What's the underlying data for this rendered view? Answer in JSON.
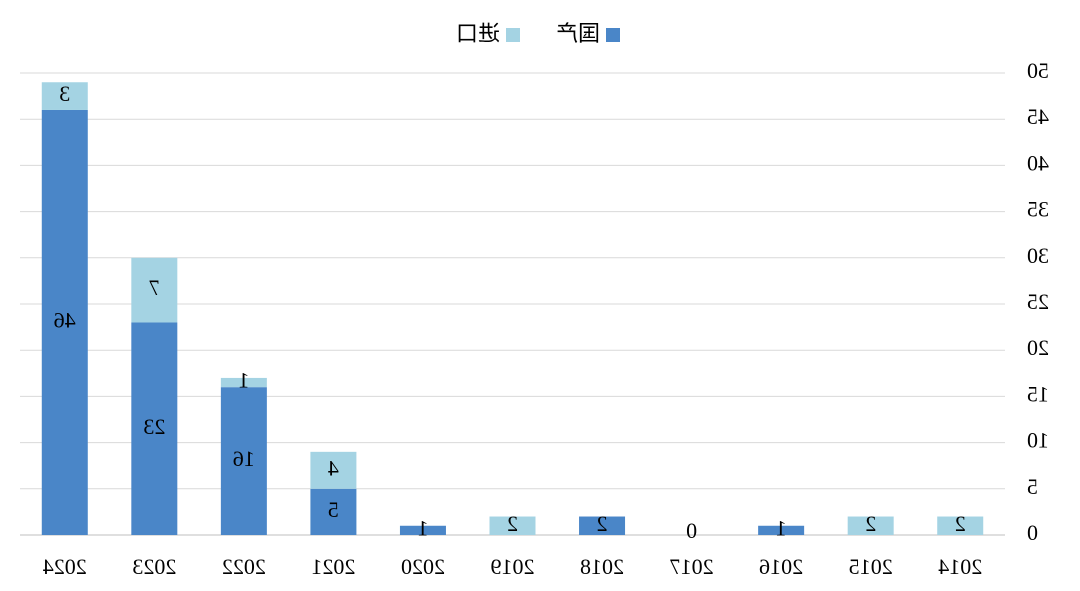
{
  "chart_data": {
    "type": "stacked-bar",
    "categories": [
      "2014",
      "2015",
      "2016",
      "2017",
      "2018",
      "2019",
      "2020",
      "2021",
      "2022",
      "2023",
      "2024"
    ],
    "series": [
      {
        "name": "国产",
        "color": "#4a86c8",
        "values": [
          null,
          null,
          1,
          0,
          2,
          null,
          1,
          5,
          16,
          23,
          46
        ]
      },
      {
        "name": "进口",
        "color": "#a4d3e3",
        "values": [
          2,
          2,
          null,
          null,
          null,
          2,
          null,
          4,
          1,
          7,
          3
        ]
      }
    ],
    "ylim": [
      0,
      50
    ],
    "yticks": [
      0,
      5,
      10,
      15,
      20,
      25,
      30,
      35,
      40,
      45,
      50
    ],
    "grid": true,
    "legend": "top",
    "mirrored": true
  }
}
